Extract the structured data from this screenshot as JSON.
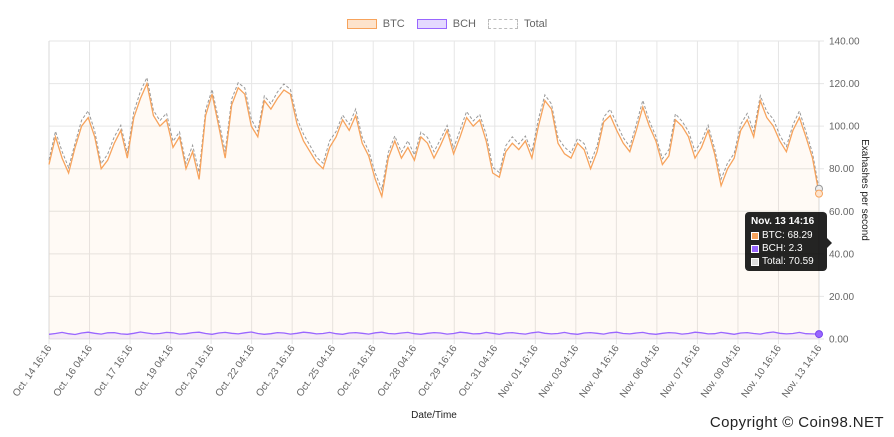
{
  "chart_data": {
    "type": "line",
    "title": "",
    "xlabel": "Date/Time",
    "ylabel": "Exahashes per second",
    "ylim": [
      0,
      140
    ],
    "y_ticks": [
      "0.00",
      "20.00",
      "40.00",
      "60.00",
      "80.00",
      "100.00",
      "120.00",
      "140.00"
    ],
    "x_ticks": [
      "Oct. 14 16:16",
      "Oct. 16 04:16",
      "Oct. 17 16:16",
      "Oct. 19 04:16",
      "Oct. 20 16:16",
      "Oct. 22 04:16",
      "Oct. 23 16:16",
      "Oct. 25 04:16",
      "Oct. 26 16:16",
      "Oct. 28 04:16",
      "Oct. 29 16:16",
      "Oct. 31 04:16",
      "Nov. 01 16:16",
      "Nov. 03 04:16",
      "Nov. 04 16:16",
      "Nov. 06 04:16",
      "Nov. 07 16:16",
      "Nov. 09 04:16",
      "Nov. 10 16:16",
      "Nov. 13 14:16"
    ],
    "grid": true,
    "legend_position": "top",
    "series": [
      {
        "name": "BTC",
        "color": "#f7a35c",
        "style": "solid-filled",
        "values": [
          82,
          95,
          85,
          78,
          90,
          100,
          104,
          95,
          80,
          84,
          92,
          98,
          85,
          104,
          113,
          120,
          105,
          100,
          103,
          90,
          95,
          80,
          88,
          75,
          105,
          115,
          100,
          85,
          110,
          118,
          115,
          100,
          95,
          112,
          108,
          113,
          117,
          115,
          101,
          93,
          88,
          83,
          80,
          90,
          95,
          103,
          98,
          105,
          92,
          86,
          75,
          67,
          85,
          93,
          85,
          90,
          84,
          95,
          92,
          85,
          91,
          98,
          87,
          95,
          104,
          100,
          103,
          93,
          78,
          76,
          88,
          92,
          89,
          93,
          85,
          100,
          112,
          108,
          92,
          87,
          85,
          92,
          89,
          80,
          88,
          102,
          105,
          98,
          92,
          88,
          98,
          109,
          100,
          93,
          82,
          86,
          103,
          100,
          95,
          85,
          90,
          98,
          87,
          72,
          80,
          85,
          98,
          103,
          95,
          112,
          104,
          100,
          93,
          88,
          98,
          104,
          95,
          85,
          68.29
        ]
      },
      {
        "name": "BCH",
        "color": "#9966ff",
        "style": "solid-filled",
        "values": [
          2.2,
          2.6,
          3.1,
          2.5,
          2.1,
          2.8,
          3.2,
          2.7,
          2.3,
          2.9,
          3.0,
          2.4,
          2.2,
          2.7,
          3.3,
          2.8,
          2.4,
          2.6,
          3.1,
          2.9,
          2.3,
          2.5,
          3.0,
          3.2,
          2.6,
          2.2,
          2.8,
          3.1,
          2.7,
          2.4,
          2.9,
          3.3,
          2.6,
          2.2,
          2.5,
          3.0,
          2.8,
          2.3,
          2.7,
          3.2,
          2.9,
          2.4,
          2.6,
          3.1,
          2.5,
          2.2,
          2.8,
          3.0,
          2.7,
          2.3,
          2.9,
          3.2,
          2.6,
          2.4,
          2.8,
          3.1,
          2.5,
          2.2,
          2.7,
          3.0,
          2.8,
          2.3,
          2.6,
          3.2,
          2.9,
          2.4,
          2.5,
          3.1,
          2.7,
          2.2,
          2.8,
          3.0,
          2.6,
          2.3,
          2.9,
          3.3,
          2.7,
          2.4,
          2.6,
          3.1,
          2.5,
          2.2,
          2.8,
          3.0,
          2.7,
          2.3,
          2.9,
          3.2,
          2.6,
          2.4,
          2.8,
          3.1,
          2.5,
          2.2,
          2.7,
          3.0,
          2.8,
          2.3,
          2.6,
          3.2,
          2.9,
          2.4,
          2.5,
          3.1,
          2.7,
          2.2,
          2.8,
          3.0,
          2.6,
          2.3,
          2.9,
          3.3,
          2.7,
          2.4,
          2.6,
          3.1,
          2.5,
          2.4,
          2.3
        ]
      },
      {
        "name": "Total",
        "color": "#999999",
        "style": "dashed"
      }
    ],
    "tooltip": {
      "title": "Nov. 13 14:16",
      "rows": [
        {
          "label": "BTC: 68.29",
          "color": "#f7a35c"
        },
        {
          "label": "BCH: 2.3",
          "color": "#9966ff"
        },
        {
          "label": "Total: 70.59",
          "color": "#dddddd"
        }
      ]
    }
  },
  "legend": {
    "items": [
      {
        "name": "BTC",
        "fill": "#fde3cc",
        "border": "#f7a35c"
      },
      {
        "name": "BCH",
        "fill": "#e4d9ff",
        "border": "#9966ff"
      },
      {
        "name": "Total",
        "fill": "#ffffff",
        "border": "#bbbbbb"
      }
    ]
  },
  "copyright": "Copyright © Coin98.NET"
}
